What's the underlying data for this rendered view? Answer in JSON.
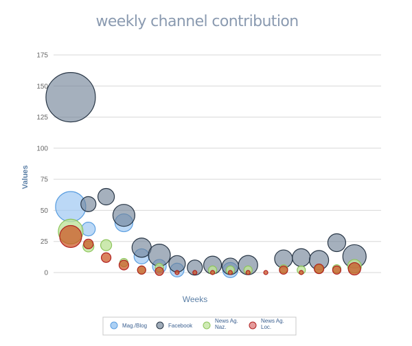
{
  "chart_data": {
    "type": "bubble",
    "title": "weekly channel contribution",
    "xlabel": "Weeks",
    "ylabel": "Values",
    "ylim": [
      0,
      175
    ],
    "yticks": [
      0,
      25,
      50,
      75,
      100,
      125,
      150,
      175
    ],
    "xlim": [
      0.5,
      18.5
    ],
    "grid": true,
    "legend_position": "bottom",
    "series": [
      {
        "name": "Mag./Blog",
        "fill": "#9ec8f2",
        "stroke": "#5a9ee0",
        "opacity": 0.7,
        "points": [
          {
            "x": 1,
            "y": 53,
            "r": 22
          },
          {
            "x": 2,
            "y": 35,
            "r": 10
          },
          {
            "x": 4,
            "y": 40,
            "r": 13
          },
          {
            "x": 5,
            "y": 13,
            "r": 11
          },
          {
            "x": 6,
            "y": 5,
            "r": 10
          },
          {
            "x": 7,
            "y": 2,
            "r": 10
          },
          {
            "x": 10,
            "y": 2,
            "r": 11
          },
          {
            "x": 17,
            "y": 4,
            "r": 7
          }
        ]
      },
      {
        "name": "Facebook",
        "fill": "#6e8095",
        "stroke": "#273545",
        "opacity": 0.62,
        "points": [
          {
            "x": 1,
            "y": 141,
            "r": 36
          },
          {
            "x": 2,
            "y": 55,
            "r": 11
          },
          {
            "x": 3,
            "y": 61,
            "r": 12
          },
          {
            "x": 4,
            "y": 46,
            "r": 16
          },
          {
            "x": 5,
            "y": 20,
            "r": 14
          },
          {
            "x": 6,
            "y": 14,
            "r": 16
          },
          {
            "x": 7,
            "y": 7,
            "r": 12
          },
          {
            "x": 8,
            "y": 4,
            "r": 11
          },
          {
            "x": 9,
            "y": 6,
            "r": 13
          },
          {
            "x": 10,
            "y": 5,
            "r": 12
          },
          {
            "x": 11,
            "y": 6,
            "r": 14
          },
          {
            "x": 13,
            "y": 11,
            "r": 13
          },
          {
            "x": 14,
            "y": 12,
            "r": 13
          },
          {
            "x": 15,
            "y": 10,
            "r": 14
          },
          {
            "x": 16,
            "y": 24,
            "r": 13
          },
          {
            "x": 17,
            "y": 13,
            "r": 17
          }
        ]
      },
      {
        "name": "News Ag. Naz.",
        "fill": "#bfe39b",
        "stroke": "#8cc45a",
        "opacity": 0.8,
        "points": [
          {
            "x": 1,
            "y": 33,
            "r": 18
          },
          {
            "x": 2,
            "y": 21,
            "r": 8
          },
          {
            "x": 3,
            "y": 22,
            "r": 8
          },
          {
            "x": 4,
            "y": 8,
            "r": 6
          },
          {
            "x": 5,
            "y": 2,
            "r": 6
          },
          {
            "x": 6,
            "y": 4,
            "r": 6
          },
          {
            "x": 9,
            "y": 2,
            "r": 6
          },
          {
            "x": 10,
            "y": 2,
            "r": 6
          },
          {
            "x": 11,
            "y": 2,
            "r": 6
          },
          {
            "x": 13,
            "y": 3,
            "r": 6
          },
          {
            "x": 14,
            "y": 2,
            "r": 6
          },
          {
            "x": 15,
            "y": 3,
            "r": 6
          },
          {
            "x": 16,
            "y": 3,
            "r": 6
          },
          {
            "x": 17,
            "y": 5,
            "r": 10
          }
        ]
      },
      {
        "name": "News Ag. Loc.",
        "fill": "#cc5522",
        "stroke": "#b02020",
        "opacity": 0.72,
        "points": [
          {
            "x": 1,
            "y": 29,
            "r": 16
          },
          {
            "x": 2,
            "y": 23,
            "r": 7
          },
          {
            "x": 3,
            "y": 12,
            "r": 7
          },
          {
            "x": 4,
            "y": 6,
            "r": 7
          },
          {
            "x": 5,
            "y": 2,
            "r": 6
          },
          {
            "x": 6,
            "y": 1,
            "r": 6
          },
          {
            "x": 7,
            "y": 0,
            "r": 3
          },
          {
            "x": 8,
            "y": 0,
            "r": 3
          },
          {
            "x": 9,
            "y": 0,
            "r": 3
          },
          {
            "x": 10,
            "y": 0,
            "r": 3
          },
          {
            "x": 11,
            "y": 0,
            "r": 3
          },
          {
            "x": 12,
            "y": 0,
            "r": 3
          },
          {
            "x": 13,
            "y": 2,
            "r": 6
          },
          {
            "x": 14,
            "y": 0,
            "r": 3
          },
          {
            "x": 15,
            "y": 3,
            "r": 7
          },
          {
            "x": 16,
            "y": 2,
            "r": 6
          },
          {
            "x": 17,
            "y": 3,
            "r": 9
          }
        ]
      }
    ],
    "legend": [
      {
        "label_lines": [
          "Mag./Blog"
        ],
        "fill": "#9ec8f2",
        "stroke": "#5a9ee0"
      },
      {
        "label_lines": [
          "Facebook"
        ],
        "fill": "#8e9cab",
        "stroke": "#273545"
      },
      {
        "label_lines": [
          "News Ag.",
          "Naz."
        ],
        "fill": "#c8e8a8",
        "stroke": "#8cc45a"
      },
      {
        "label_lines": [
          "News Ag.",
          "Loc."
        ],
        "fill": "#e08a8a",
        "stroke": "#b02020"
      }
    ]
  }
}
